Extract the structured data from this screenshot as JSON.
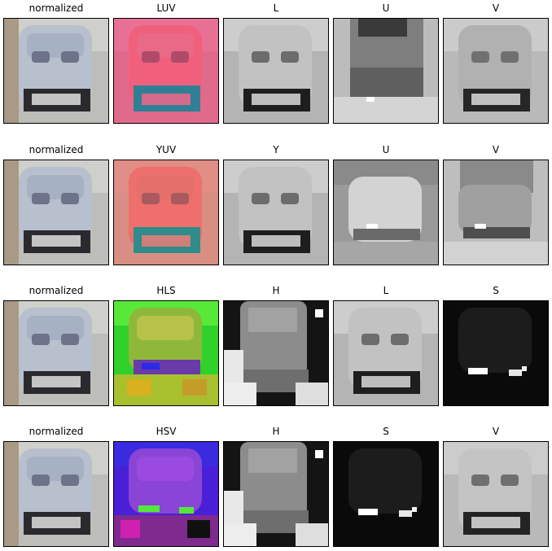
{
  "rows": [
    {
      "titles": [
        "normalized",
        "LUV",
        "L",
        "U",
        "V"
      ]
    },
    {
      "titles": [
        "normalized",
        "YUV",
        "Y",
        "U",
        "V"
      ]
    },
    {
      "titles": [
        "normalized",
        "HLS",
        "H",
        "L",
        "S"
      ]
    },
    {
      "titles": [
        "normalized",
        "HSV",
        "H",
        "S",
        "V"
      ]
    }
  ]
}
